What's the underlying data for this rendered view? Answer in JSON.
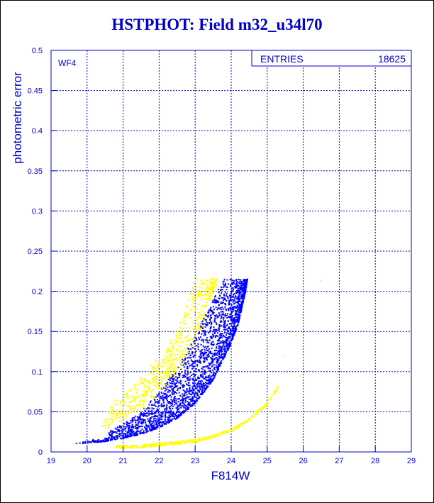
{
  "chart_data": {
    "type": "scatter",
    "title": "HSTPHOT: Field m32_u34l70",
    "xlabel": "F814W",
    "ylabel": "photometric error",
    "xlim": [
      19,
      29
    ],
    "ylim": [
      0,
      0.5
    ],
    "x_ticks": [
      "19",
      "20",
      "21",
      "22",
      "23",
      "24",
      "25",
      "26",
      "27",
      "28",
      "29"
    ],
    "y_ticks": [
      "0",
      "0.05",
      "0.1",
      "0.15",
      "0.2",
      "0.25",
      "0.3",
      "0.35",
      "0.4",
      "0.45",
      "0.5"
    ],
    "grid": true,
    "panel_label": "WF4",
    "stats_box": {
      "label": "ENTRIES",
      "value": "18625"
    },
    "colors": {
      "text": "#0000cc",
      "main_points": "#0000ff",
      "overlay_points": "#ffff00"
    },
    "series": [
      {
        "color": "#0000ff",
        "envelope_lower": [
          [
            19.6,
            0.009
          ],
          [
            20.0,
            0.011
          ],
          [
            20.5,
            0.013
          ],
          [
            21.0,
            0.017
          ],
          [
            21.5,
            0.022
          ],
          [
            22.0,
            0.03
          ],
          [
            22.5,
            0.042
          ],
          [
            23.0,
            0.06
          ],
          [
            23.5,
            0.09
          ],
          [
            24.0,
            0.135
          ],
          [
            24.2,
            0.16
          ],
          [
            24.4,
            0.2
          ],
          [
            24.45,
            0.215
          ]
        ],
        "envelope_upper": [
          [
            20.6,
            0.025
          ],
          [
            21.0,
            0.035
          ],
          [
            21.5,
            0.05
          ],
          [
            22.0,
            0.075
          ],
          [
            22.5,
            0.105
          ],
          [
            23.0,
            0.145
          ],
          [
            23.5,
            0.19
          ],
          [
            23.8,
            0.215
          ],
          [
            24.45,
            0.215
          ]
        ]
      },
      {
        "color": "#ffff00",
        "sequence_curve": [
          [
            20.8,
            0.006
          ],
          [
            21.5,
            0.007
          ],
          [
            22.0,
            0.009
          ],
          [
            22.5,
            0.011
          ],
          [
            23.0,
            0.014
          ],
          [
            23.5,
            0.019
          ],
          [
            24.0,
            0.027
          ],
          [
            24.5,
            0.04
          ],
          [
            25.0,
            0.06
          ],
          [
            25.3,
            0.08
          ]
        ],
        "scatter_envelope_lower": [
          [
            20.4,
            0.03
          ],
          [
            21.0,
            0.04
          ],
          [
            21.5,
            0.055
          ],
          [
            22.0,
            0.075
          ],
          [
            22.5,
            0.1
          ],
          [
            23.0,
            0.135
          ],
          [
            23.3,
            0.17
          ],
          [
            23.6,
            0.215
          ]
        ],
        "scatter_envelope_upper": [
          [
            20.4,
            0.04
          ],
          [
            21.0,
            0.07
          ],
          [
            21.5,
            0.09
          ],
          [
            22.0,
            0.115
          ],
          [
            22.5,
            0.15
          ],
          [
            22.8,
            0.19
          ],
          [
            23.0,
            0.215
          ]
        ],
        "outliers": [
          [
            25.8,
            0.145
          ],
          [
            26.5,
            0.213
          ],
          [
            25.5,
            0.12
          ],
          [
            25.9,
            0.095
          ]
        ]
      }
    ]
  }
}
